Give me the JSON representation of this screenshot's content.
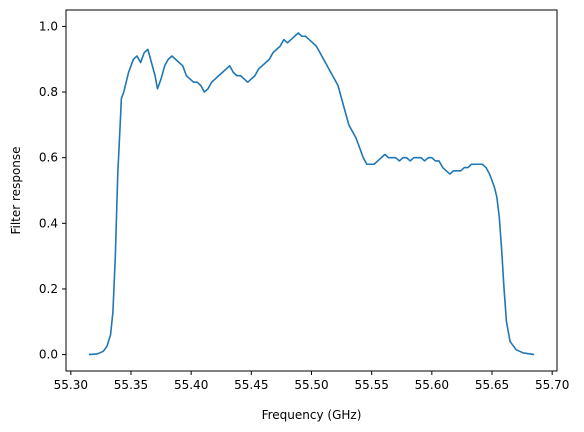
{
  "chart_data": {
    "type": "line",
    "title": "",
    "xlabel": "Frequency (GHz)",
    "ylabel": "Filter response",
    "xlim": [
      55.296,
      55.704
    ],
    "ylim": [
      -0.05,
      1.05
    ],
    "xticks": [
      55.3,
      55.35,
      55.4,
      55.45,
      55.5,
      55.55,
      55.6,
      55.65,
      55.7
    ],
    "xtick_labels": [
      "55.30",
      "55.35",
      "55.40",
      "55.45",
      "55.50",
      "55.55",
      "55.60",
      "55.65",
      "55.70"
    ],
    "yticks": [
      0.0,
      0.2,
      0.4,
      0.6,
      0.8,
      1.0
    ],
    "ytick_labels": [
      "0.0",
      "0.2",
      "0.4",
      "0.6",
      "0.8",
      "1.0"
    ],
    "grid": false,
    "series": [
      {
        "color": "#1f77b4",
        "x": [
          55.315,
          55.322,
          55.327,
          55.33,
          55.333,
          55.335,
          55.337,
          55.339,
          55.341,
          55.342,
          55.344,
          55.346,
          55.348,
          55.35,
          55.352,
          55.355,
          55.358,
          55.361,
          55.364,
          55.367,
          55.37,
          55.372,
          55.375,
          55.378,
          55.381,
          55.384,
          55.387,
          55.39,
          55.393,
          55.396,
          55.399,
          55.402,
          55.405,
          55.408,
          55.411,
          55.414,
          55.417,
          55.42,
          55.423,
          55.426,
          55.429,
          55.432,
          55.435,
          55.438,
          55.441,
          55.444,
          55.447,
          55.45,
          55.453,
          55.456,
          55.459,
          55.462,
          55.465,
          55.468,
          55.471,
          55.474,
          55.477,
          55.48,
          55.483,
          55.486,
          55.489,
          55.492,
          55.495,
          55.498,
          55.501,
          55.504,
          55.507,
          55.51,
          55.513,
          55.516,
          55.519,
          55.522,
          55.525,
          55.528,
          55.531,
          55.534,
          55.537,
          55.54,
          55.543,
          55.546,
          55.549,
          55.552,
          55.555,
          55.558,
          55.561,
          55.564,
          55.567,
          55.57,
          55.573,
          55.576,
          55.579,
          55.582,
          55.585,
          55.588,
          55.591,
          55.594,
          55.597,
          55.6,
          55.603,
          55.606,
          55.609,
          55.612,
          55.615,
          55.618,
          55.621,
          55.624,
          55.627,
          55.63,
          55.633,
          55.636,
          55.639,
          55.642,
          55.645,
          55.648,
          55.65,
          55.652,
          55.654,
          55.656,
          55.658,
          55.66,
          55.662,
          55.665,
          55.67,
          55.676,
          55.685
        ],
        "y": [
          0.0,
          0.002,
          0.01,
          0.025,
          0.06,
          0.13,
          0.3,
          0.55,
          0.7,
          0.78,
          0.8,
          0.83,
          0.86,
          0.88,
          0.9,
          0.91,
          0.89,
          0.92,
          0.93,
          0.89,
          0.85,
          0.81,
          0.84,
          0.88,
          0.9,
          0.91,
          0.9,
          0.89,
          0.88,
          0.85,
          0.84,
          0.83,
          0.83,
          0.82,
          0.8,
          0.81,
          0.83,
          0.84,
          0.85,
          0.86,
          0.87,
          0.88,
          0.86,
          0.85,
          0.85,
          0.84,
          0.83,
          0.84,
          0.85,
          0.87,
          0.88,
          0.89,
          0.9,
          0.92,
          0.93,
          0.94,
          0.96,
          0.95,
          0.96,
          0.97,
          0.98,
          0.97,
          0.97,
          0.96,
          0.95,
          0.94,
          0.92,
          0.9,
          0.88,
          0.86,
          0.84,
          0.82,
          0.78,
          0.74,
          0.7,
          0.68,
          0.66,
          0.63,
          0.6,
          0.58,
          0.58,
          0.58,
          0.59,
          0.6,
          0.61,
          0.6,
          0.6,
          0.6,
          0.59,
          0.6,
          0.6,
          0.59,
          0.6,
          0.6,
          0.6,
          0.59,
          0.6,
          0.6,
          0.59,
          0.59,
          0.57,
          0.56,
          0.55,
          0.56,
          0.56,
          0.56,
          0.57,
          0.57,
          0.58,
          0.58,
          0.58,
          0.58,
          0.57,
          0.55,
          0.53,
          0.51,
          0.48,
          0.42,
          0.32,
          0.2,
          0.1,
          0.04,
          0.015,
          0.005,
          0.0
        ]
      }
    ]
  }
}
